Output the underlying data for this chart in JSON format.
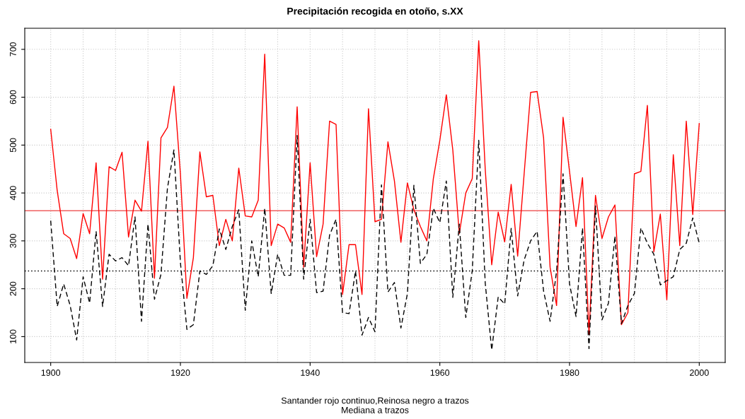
{
  "chart_data": {
    "type": "line",
    "title": "Precipitación recogida en otoño, s.XX",
    "xlabel": "Santander rojo continuo,Reinosa negro a trazos\nMediana a trazos",
    "x": [
      1900,
      1901,
      1902,
      1903,
      1904,
      1905,
      1906,
      1907,
      1908,
      1909,
      1910,
      1911,
      1912,
      1913,
      1914,
      1915,
      1916,
      1917,
      1918,
      1919,
      1920,
      1921,
      1922,
      1923,
      1924,
      1925,
      1926,
      1927,
      1928,
      1929,
      1930,
      1931,
      1932,
      1933,
      1934,
      1935,
      1936,
      1937,
      1938,
      1939,
      1940,
      1941,
      1942,
      1943,
      1944,
      1945,
      1946,
      1947,
      1948,
      1949,
      1950,
      1951,
      1952,
      1953,
      1954,
      1955,
      1956,
      1957,
      1958,
      1959,
      1960,
      1961,
      1962,
      1963,
      1964,
      1965,
      1966,
      1967,
      1968,
      1969,
      1970,
      1971,
      1972,
      1973,
      1974,
      1975,
      1976,
      1977,
      1978,
      1979,
      1980,
      1981,
      1982,
      1983,
      1984,
      1985,
      1986,
      1987,
      1988,
      1989,
      1990,
      1991,
      1992,
      1993,
      1994,
      1995,
      1996,
      1997,
      1998,
      1999,
      2000
    ],
    "series": [
      {
        "color": "#ff0000",
        "line_style": "solid",
        "values": [
          533,
          405,
          315,
          305,
          263,
          357,
          315,
          463,
          220,
          455,
          447,
          485,
          308,
          385,
          362,
          508,
          222,
          515,
          537,
          623,
          440,
          180,
          265,
          486,
          392,
          395,
          290,
          345,
          300,
          452,
          352,
          350,
          385,
          690,
          290,
          335,
          327,
          297,
          580,
          245,
          463,
          267,
          335,
          550,
          543,
          188,
          292,
          292,
          188,
          576,
          340,
          345,
          507,
          425,
          297,
          421,
          365,
          330,
          300,
          430,
          510,
          605,
          490,
          315,
          400,
          430,
          718,
          450,
          250,
          360,
          298,
          418,
          268,
          440,
          610,
          612,
          515,
          245,
          165,
          558,
          445,
          330,
          432,
          105,
          395,
          305,
          350,
          375,
          125,
          150,
          440,
          445,
          583,
          277,
          356,
          177,
          480,
          290,
          550,
          355,
          545
        ]
      },
      {
        "color": "#000000",
        "line_style": "dashed",
        "values": [
          342,
          163,
          210,
          165,
          93,
          225,
          170,
          320,
          163,
          272,
          258,
          265,
          248,
          350,
          132,
          335,
          178,
          230,
          410,
          490,
          255,
          115,
          125,
          237,
          230,
          248,
          325,
          282,
          330,
          365,
          155,
          300,
          225,
          368,
          190,
          272,
          228,
          228,
          520,
          220,
          345,
          192,
          195,
          312,
          345,
          150,
          148,
          237,
          103,
          140,
          110,
          417,
          193,
          213,
          118,
          190,
          416,
          253,
          272,
          368,
          338,
          425,
          182,
          335,
          140,
          238,
          510,
          212,
          72,
          183,
          168,
          326,
          185,
          260,
          300,
          320,
          195,
          132,
          237,
          440,
          210,
          142,
          327,
          75,
          373,
          135,
          170,
          310,
          127,
          165,
          190,
          327,
          295,
          272,
          208,
          217,
          225,
          282,
          295,
          348,
          295
        ]
      }
    ],
    "ref_lines": [
      {
        "axis": "y",
        "value": 363,
        "color": "#f06060",
        "line_style": "solid"
      },
      {
        "axis": "y",
        "value": 237,
        "color": "#000000",
        "line_style": "dotted"
      }
    ],
    "xlim": [
      1896,
      2004
    ],
    "ylim": [
      46,
      744
    ],
    "xticks": [
      1900,
      {
        "value": 1905,
        "label": null
      },
      {
        "value": 1910,
        "label": null
      },
      {
        "value": 1915,
        "label": null
      },
      1920,
      {
        "value": 1925,
        "label": null
      },
      {
        "value": 1930,
        "label": null
      },
      {
        "value": 1935,
        "label": null
      },
      1940,
      {
        "value": 1945,
        "label": null
      },
      {
        "value": 1950,
        "label": null
      },
      {
        "value": 1955,
        "label": null
      },
      1960,
      {
        "value": 1965,
        "label": null
      },
      {
        "value": 1970,
        "label": null
      },
      {
        "value": 1975,
        "label": null
      },
      1980,
      {
        "value": 1985,
        "label": null
      },
      {
        "value": 1990,
        "label": null
      },
      {
        "value": 1995,
        "label": null
      },
      2000
    ],
    "yticks": [
      100,
      200,
      300,
      400,
      500,
      600,
      700
    ],
    "grid": true,
    "marker": "none"
  }
}
